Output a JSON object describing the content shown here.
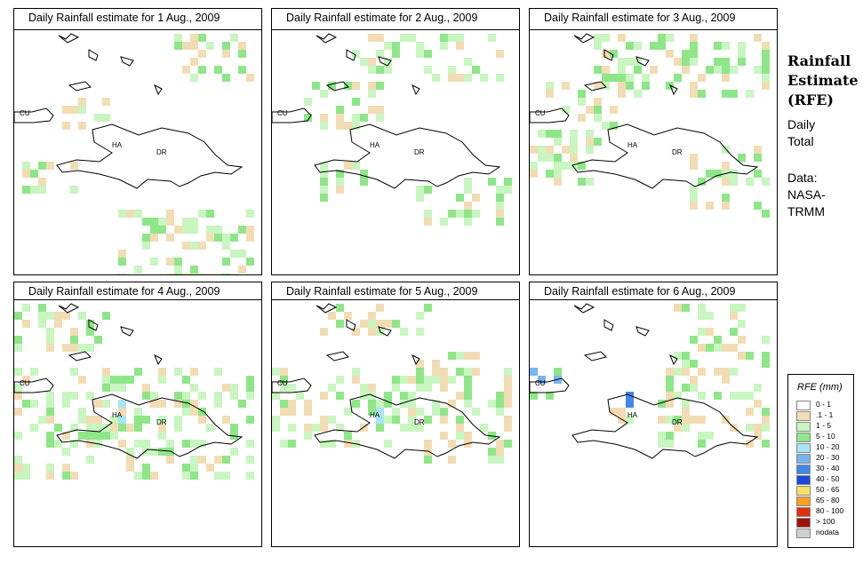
{
  "panels": [
    {
      "title": "Daily Rainfall estimate for  1 Aug., 2009",
      "day": 1
    },
    {
      "title": "Daily Rainfall estimate for  2 Aug., 2009",
      "day": 2
    },
    {
      "title": "Daily Rainfall estimate for  3 Aug., 2009",
      "day": 3
    },
    {
      "title": "Daily Rainfall estimate for  4 Aug., 2009",
      "day": 4
    },
    {
      "title": "Daily Rainfall estimate for  5 Aug., 2009",
      "day": 5
    },
    {
      "title": "Daily Rainfall estimate for  6 Aug., 2009",
      "day": 6
    }
  ],
  "country_labels": {
    "cuba": "CU",
    "haiti": "HA",
    "dominican_republic": "DR"
  },
  "side": {
    "title_line1": "Rainfall",
    "title_line2": "Estimate",
    "title_line3": "(RFE)",
    "period_line1": "Daily",
    "period_line2": "Total",
    "source_line1": "Data:",
    "source_line2": "NASA-",
    "source_line3": "TRMM"
  },
  "legend": {
    "title": "RFE (mm)",
    "classes": [
      {
        "label": "0 - 1",
        "color": "#ffffff"
      },
      {
        "label": ".1 - 1",
        "color": "#f2dcb4"
      },
      {
        "label": "1 - 5",
        "color": "#c8f5c0"
      },
      {
        "label": "5 - 10",
        "color": "#8ee688"
      },
      {
        "label": "10 - 20",
        "color": "#a8e4f4"
      },
      {
        "label": "20 - 30",
        "color": "#78b4ee"
      },
      {
        "label": "30 - 40",
        "color": "#4088e8"
      },
      {
        "label": "40 - 50",
        "color": "#1a48d8"
      },
      {
        "label": "50 - 65",
        "color": "#f8e060"
      },
      {
        "label": "65 - 80",
        "color": "#f8a020"
      },
      {
        "label": "80 - 100",
        "color": "#e03010"
      },
      {
        "label": "> 100",
        "color": "#a01008"
      },
      {
        "label": "nodata",
        "color": "#d0d0d0"
      }
    ]
  }
}
